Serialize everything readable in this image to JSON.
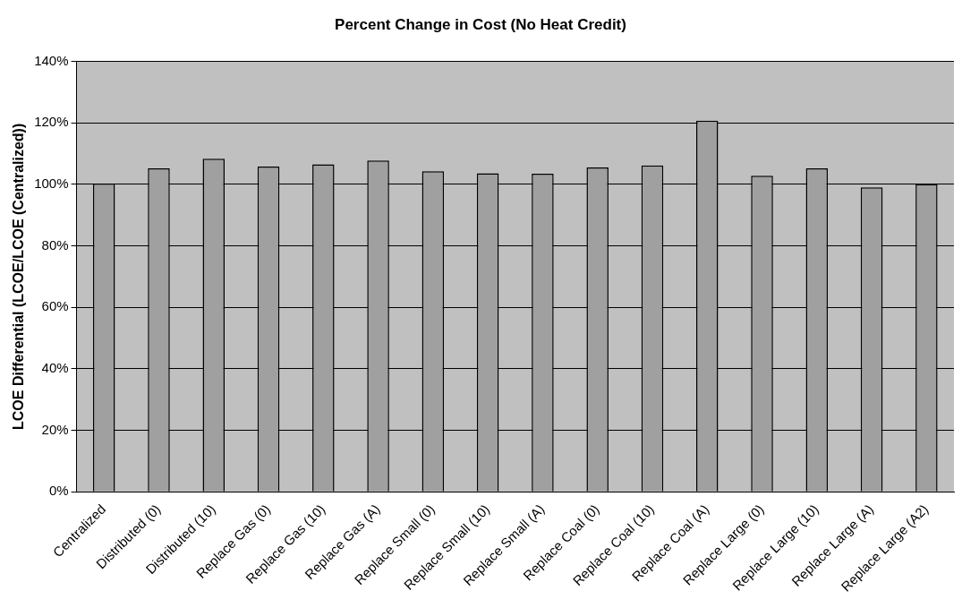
{
  "chart_data": {
    "type": "bar",
    "title": "Percent Change in Cost (No Heat Credit)",
    "ylabel": "LCOE Differential (LCOE/LCOE (Centralized))",
    "categories": [
      "Centralized",
      "Distributed (0)",
      "Distributed (10)",
      "Replace Gas (0)",
      "Replace Gas (10)",
      "Replace Gas (A)",
      "Replace Small (0)",
      "Replace Small (10)",
      "Replace Small (A)",
      "Replace Coal (0)",
      "Replace Coal (10)",
      "Replace Coal (A)",
      "Replace Large (0)",
      "Replace Large (10)",
      "Replace Large (A)",
      "Replace Large (A2)"
    ],
    "values": [
      100.2,
      105.2,
      108.3,
      105.8,
      106.5,
      107.7,
      104.2,
      103.6,
      103.4,
      105.5,
      106.1,
      120.7,
      102.8,
      105.2,
      99,
      100
    ],
    "color": "#a0a0a0",
    "ylim": [
      0,
      140
    ],
    "yticks": [
      {
        "value": 0,
        "label": "0%"
      },
      {
        "value": 20,
        "label": "20%"
      },
      {
        "value": 40,
        "label": "40%"
      },
      {
        "value": 60,
        "label": "60%"
      },
      {
        "value": 80,
        "label": "80%"
      },
      {
        "value": 100,
        "label": "100%"
      },
      {
        "value": 120,
        "label": "120%"
      },
      {
        "value": 140,
        "label": "140%"
      }
    ],
    "grid": "y",
    "legend": false
  }
}
